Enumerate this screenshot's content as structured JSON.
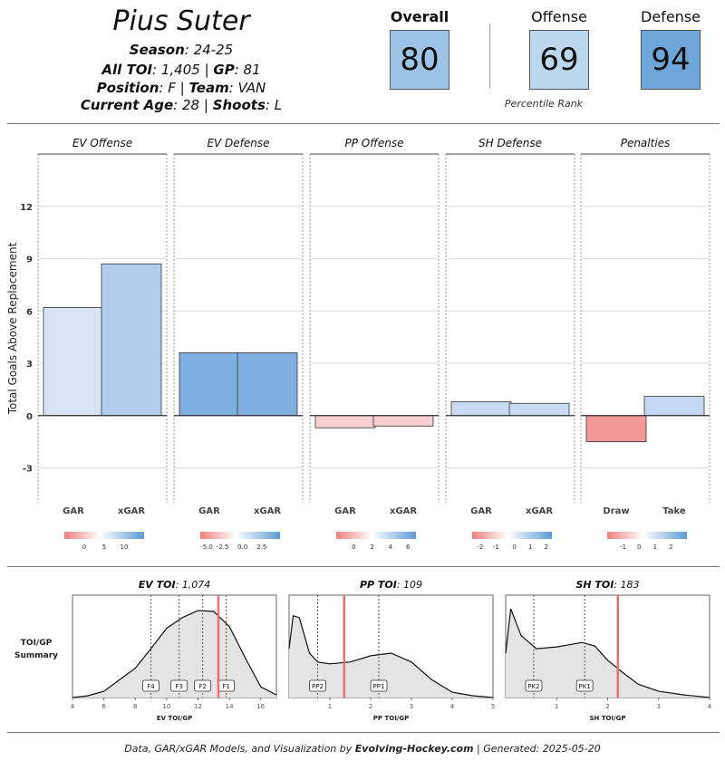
{
  "player": {
    "name": "Pius Suter",
    "season_label": "Season",
    "season": "24-25",
    "toi_label": "All TOI",
    "toi": "1,405",
    "gp_label": "GP",
    "gp": "81",
    "position_label": "Position",
    "position": "F",
    "team_label": "Team",
    "team": "VAN",
    "age_label": "Current Age",
    "age": "28",
    "shoots_label": "Shoots",
    "shoots": "L"
  },
  "ranks": {
    "overall_label": "Overall",
    "overall": "80",
    "overall_color": "#9dc3e6",
    "offense_label": "Offense",
    "offense": "69",
    "offense_color": "#bdd7ee",
    "defense_label": "Defense",
    "defense": "94",
    "defense_color": "#6ea6da",
    "caption": "Percentile Rank"
  },
  "chart_data": [
    {
      "type": "bar",
      "ylabel": "Total Goals Above Replacement",
      "ylim": [
        -5,
        15
      ],
      "yticks": [
        -3,
        0,
        3,
        6,
        9,
        12
      ],
      "grid": true,
      "panels": [
        {
          "title": "EV Offense",
          "categories": [
            "GAR",
            "xGAR"
          ],
          "values": [
            6.2,
            8.7
          ],
          "colors": [
            "#d9e5f5",
            "#b2cdee"
          ],
          "scale": {
            "labels": [
              "0",
              "5",
              "10"
            ],
            "positions": [
              0.25,
              0.5,
              0.75
            ]
          }
        },
        {
          "title": "EV Defense",
          "categories": [
            "GAR",
            "xGAR"
          ],
          "values": [
            3.6,
            3.6
          ],
          "colors": [
            "#7fb0e1",
            "#7fb0e1"
          ],
          "scale": {
            "labels": [
              "-5.0",
              "-2.5",
              "0.0",
              "2.5"
            ],
            "positions": [
              0.08,
              0.28,
              0.53,
              0.77
            ]
          }
        },
        {
          "title": "PP Offense",
          "categories": [
            "GAR",
            "xGAR"
          ],
          "values": [
            -0.7,
            -0.6
          ],
          "colors": [
            "#f7cfcf",
            "#f7cfcf"
          ],
          "scale": {
            "labels": [
              "0",
              "2",
              "4",
              "6"
            ],
            "positions": [
              0.22,
              0.45,
              0.68,
              0.9
            ]
          }
        },
        {
          "title": "SH Defense",
          "categories": [
            "GAR",
            "xGAR"
          ],
          "values": [
            0.8,
            0.7
          ],
          "colors": [
            "#c8dbf3",
            "#c8dbf3"
          ],
          "scale": {
            "labels": [
              "-2",
              "-1",
              "0",
              "1",
              "2"
            ],
            "positions": [
              0.1,
              0.3,
              0.53,
              0.73,
              0.93
            ]
          }
        },
        {
          "title": "Penalties",
          "categories": [
            "Draw",
            "Take"
          ],
          "values": [
            -1.5,
            1.1
          ],
          "colors": [
            "#f39999",
            "#c3d8f3"
          ],
          "scale": {
            "labels": [
              "-1",
              "0",
              "1",
              "2"
            ],
            "positions": [
              0.2,
              0.4,
              0.6,
              0.8
            ]
          }
        }
      ]
    },
    {
      "type": "area",
      "summary_label": "TOI/GP\nSummary",
      "panels": [
        {
          "title_label": "EV TOI",
          "title_value": "1,074",
          "xlabel": "EV TOI/GP",
          "xlim": [
            4,
            17
          ],
          "xticks": [
            4,
            6,
            8,
            10,
            12,
            14,
            16
          ],
          "density": [
            [
              4,
              0.0
            ],
            [
              5,
              0.02
            ],
            [
              6,
              0.07
            ],
            [
              7,
              0.2
            ],
            [
              8,
              0.33
            ],
            [
              9,
              0.55
            ],
            [
              10,
              0.78
            ],
            [
              11,
              0.9
            ],
            [
              12,
              0.98
            ],
            [
              13,
              0.97
            ],
            [
              14,
              0.8
            ],
            [
              15,
              0.45
            ],
            [
              16,
              0.12
            ],
            [
              17,
              0.03
            ]
          ],
          "markers": [
            {
              "label": "F4",
              "x": 9.0
            },
            {
              "label": "F3",
              "x": 10.8
            },
            {
              "label": "F2",
              "x": 12.3
            },
            {
              "label": "F1",
              "x": 13.8
            }
          ],
          "player_x": 13.3
        },
        {
          "title_label": "PP TOI",
          "title_value": "109",
          "xlabel": "PP TOI/GP",
          "xlim": [
            0,
            5
          ],
          "xticks": [
            1,
            2,
            3,
            4,
            5
          ],
          "density": [
            [
              0,
              0.55
            ],
            [
              0.1,
              0.92
            ],
            [
              0.25,
              0.9
            ],
            [
              0.5,
              0.5
            ],
            [
              0.7,
              0.4
            ],
            [
              1,
              0.38
            ],
            [
              1.5,
              0.4
            ],
            [
              2,
              0.47
            ],
            [
              2.5,
              0.5
            ],
            [
              3,
              0.4
            ],
            [
              3.5,
              0.2
            ],
            [
              4,
              0.06
            ],
            [
              4.5,
              0.02
            ],
            [
              5,
              0.0
            ]
          ],
          "markers": [
            {
              "label": "PP2",
              "x": 0.7
            },
            {
              "label": "PP1",
              "x": 2.2
            }
          ],
          "player_x": 1.35
        },
        {
          "title_label": "SH TOI",
          "title_value": "183",
          "xlabel": "SH TOI/GP",
          "xlim": [
            0,
            4
          ],
          "xticks": [
            1,
            2,
            3,
            4
          ],
          "density": [
            [
              0,
              0.5
            ],
            [
              0.1,
              1.0
            ],
            [
              0.3,
              0.7
            ],
            [
              0.6,
              0.55
            ],
            [
              1,
              0.57
            ],
            [
              1.5,
              0.62
            ],
            [
              1.75,
              0.58
            ],
            [
              2,
              0.42
            ],
            [
              2.3,
              0.28
            ],
            [
              2.6,
              0.15
            ],
            [
              3,
              0.07
            ],
            [
              3.5,
              0.03
            ],
            [
              4,
              0.0
            ]
          ],
          "markers": [
            {
              "label": "PK2",
              "x": 0.55
            },
            {
              "label": "PK1",
              "x": 1.55
            }
          ],
          "player_x": 2.2
        }
      ]
    }
  ],
  "footer": {
    "prefix": "Data, GAR/xGAR Models, and Visualization by ",
    "brand": "Evolving-Hockey.com",
    "suffix": " | Generated: 2025-05-20"
  }
}
